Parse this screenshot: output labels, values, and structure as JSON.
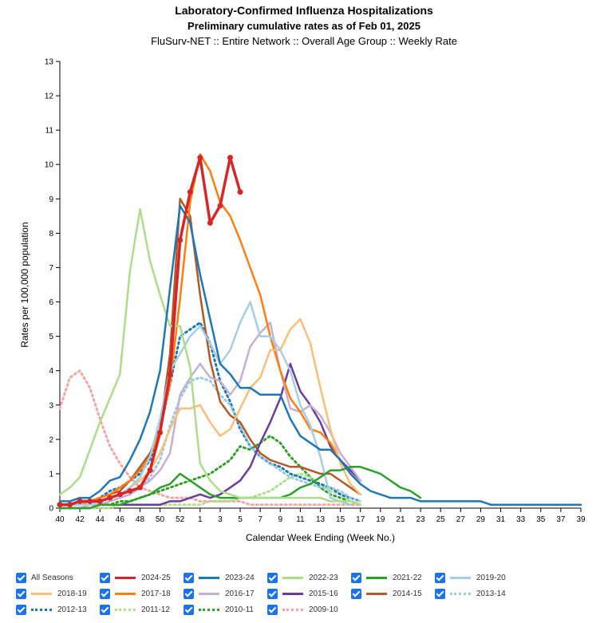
{
  "titles": {
    "line1": "Laboratory-Confirmed Influenza Hospitalizations",
    "line2": "Preliminary cumulative rates as of Feb 01, 2025",
    "line3": "FluSurv-NET :: Entire Network :: Overall Age Group :: Weekly Rate"
  },
  "chart_data": {
    "type": "line",
    "title": "Laboratory-Confirmed Influenza Hospitalizations",
    "subtitle": "Preliminary cumulative rates as of Feb 01, 2025",
    "xlabel": "Calendar Week Ending (Week No.)",
    "ylabel": "Rates per 100,000 population",
    "ylim": [
      0,
      13
    ],
    "yticks": [
      0,
      1,
      2,
      3,
      4,
      5,
      6,
      7,
      8,
      9,
      10,
      11,
      12,
      13
    ],
    "xticks": [
      "40",
      "42",
      "44",
      "46",
      "48",
      "50",
      "52",
      "1",
      "3",
      "5",
      "7",
      "9",
      "11",
      "13",
      "15",
      "17",
      "19",
      "21",
      "23",
      "25",
      "27",
      "29",
      "31",
      "33",
      "35",
      "37",
      "39"
    ],
    "x_weeks_note": "weeks 40..52 then 1..39",
    "series": [
      {
        "name": "2024-25",
        "color": "#d62728",
        "style": "solid",
        "markers": true,
        "values": [
          0.1,
          0.1,
          0.2,
          0.2,
          0.2,
          0.3,
          0.4,
          0.5,
          0.6,
          1.1,
          2.2,
          3.9,
          7.8,
          9.2,
          10.2,
          8.3,
          8.8,
          10.2,
          9.2
        ]
      },
      {
        "name": "2023-24",
        "color": "#1f77b4",
        "style": "solid",
        "values": [
          0.2,
          0.2,
          0.3,
          0.3,
          0.5,
          0.8,
          0.9,
          1.4,
          2.0,
          2.8,
          4.0,
          6.4,
          8.8,
          8.3,
          6.8,
          5.5,
          4.2,
          3.9,
          3.5,
          3.5,
          3.3,
          3.3,
          3.3,
          2.6,
          2.1,
          1.9,
          1.7,
          1.7,
          1.4,
          1.0,
          0.7,
          0.5,
          0.4,
          0.3,
          0.3,
          0.3,
          0.2,
          0.2,
          0.2,
          0.2,
          0.2,
          0.2,
          0.2,
          0.1,
          0.1,
          0.1,
          0.1,
          0.1,
          0.1,
          0.1,
          0.1,
          0.1,
          0.1
        ]
      },
      {
        "name": "2022-23",
        "color": "#aedc8c",
        "style": "solid",
        "values": [
          0.4,
          0.6,
          0.9,
          1.7,
          2.5,
          3.2,
          3.9,
          6.9,
          8.7,
          7.2,
          6.2,
          5.3,
          5.3,
          4.1,
          1.3,
          0.8,
          0.5,
          0.4,
          0.3,
          0.3,
          0.3,
          0.3,
          0.3,
          0.3,
          0.3,
          0.3,
          0.3,
          0.2,
          0.2,
          0.2,
          0.1
        ]
      },
      {
        "name": "2021-22",
        "color": "#2ca02c",
        "style": "solid",
        "values": [
          0.0,
          0.0,
          0.0,
          0.0,
          0.1,
          0.1,
          0.1,
          0.2,
          0.3,
          0.4,
          0.6,
          0.7,
          1.0,
          0.8,
          0.6,
          0.4,
          0.3,
          0.3,
          0.3,
          0.3,
          0.3,
          0.3,
          0.3,
          0.4,
          0.6,
          0.7,
          0.9,
          1.1,
          1.1,
          1.2,
          1.2,
          1.1,
          1.0,
          0.8,
          0.6,
          0.5,
          0.3
        ]
      },
      {
        "name": "2019-20",
        "color": "#a6cee3",
        "style": "solid",
        "values": [
          0.1,
          0.1,
          0.1,
          0.1,
          0.2,
          0.3,
          0.4,
          0.6,
          0.9,
          1.5,
          2.6,
          4.0,
          4.5,
          5.0,
          5.3,
          4.8,
          4.2,
          4.6,
          5.4,
          6.0,
          5.0,
          5.0,
          4.6,
          4.0,
          3.0,
          2.4,
          1.5,
          0.3,
          0.2,
          0.1
        ]
      },
      {
        "name": "2018-19",
        "color": "#f8bf78",
        "style": "solid",
        "values": [
          0.1,
          0.1,
          0.1,
          0.1,
          0.2,
          0.3,
          0.4,
          0.6,
          0.8,
          1.1,
          1.6,
          2.3,
          2.9,
          2.9,
          3.0,
          2.5,
          2.1,
          2.3,
          2.9,
          3.5,
          3.8,
          4.6,
          4.6,
          5.2,
          5.5,
          4.8,
          3.5,
          2.3,
          1.3,
          0.7,
          0.4
        ]
      },
      {
        "name": "2017-18",
        "color": "#ff7f0e",
        "style": "solid",
        "values": [
          0.1,
          0.1,
          0.1,
          0.2,
          0.3,
          0.4,
          0.6,
          0.8,
          1.1,
          1.5,
          2.3,
          3.6,
          6.1,
          8.9,
          10.3,
          9.8,
          8.9,
          8.5,
          7.8,
          7.0,
          6.2,
          5.0,
          4.0,
          3.2,
          2.8,
          2.3,
          2.2,
          1.9,
          1.4,
          1.0,
          0.7
        ]
      },
      {
        "name": "2016-17",
        "color": "#c5b0d5",
        "style": "solid",
        "values": [
          0.0,
          0.0,
          0.0,
          0.1,
          0.1,
          0.2,
          0.3,
          0.4,
          0.6,
          0.8,
          1.1,
          1.6,
          3.3,
          3.8,
          4.2,
          3.8,
          3.7,
          3.3,
          3.7,
          4.7,
          5.1,
          5.4,
          4.0,
          2.9,
          2.8,
          3.0,
          2.7,
          2.2,
          1.6,
          1.2,
          0.8
        ]
      },
      {
        "name": "2015-16",
        "color": "#6a3d9a",
        "style": "solid",
        "values": [
          0.0,
          0.0,
          0.0,
          0.0,
          0.1,
          0.1,
          0.1,
          0.1,
          0.1,
          0.1,
          0.1,
          0.2,
          0.2,
          0.3,
          0.4,
          0.3,
          0.4,
          0.6,
          0.8,
          1.2,
          1.9,
          2.5,
          3.2,
          4.2,
          3.4,
          3.0,
          2.5,
          1.8,
          1.4,
          1.1,
          0.8
        ]
      },
      {
        "name": "2014-15",
        "color": "#b15928",
        "style": "solid",
        "values": [
          0.1,
          0.1,
          0.1,
          0.2,
          0.3,
          0.4,
          0.5,
          0.8,
          1.2,
          1.6,
          2.3,
          4.5,
          9.0,
          8.5,
          6.2,
          4.3,
          3.1,
          2.7,
          2.5,
          2.0,
          1.6,
          1.4,
          1.3,
          1.2,
          1.2,
          1.1,
          1.0,
          1.0,
          0.8,
          0.6,
          0.4
        ]
      },
      {
        "name": "2013-14",
        "color": "#9ecae1",
        "style": "dotted",
        "values": [
          0.0,
          0.0,
          0.0,
          0.1,
          0.1,
          0.2,
          0.3,
          0.4,
          0.6,
          0.9,
          1.4,
          2.4,
          3.2,
          3.7,
          3.8,
          3.7,
          3.3,
          3.0,
          2.4,
          1.8,
          1.5,
          1.3,
          1.1,
          0.9,
          0.8,
          0.7,
          0.6,
          0.6,
          0.5,
          0.3,
          0.2
        ]
      },
      {
        "name": "2012-13",
        "color": "#1f77b4",
        "style": "dotted",
        "values": [
          0.1,
          0.1,
          0.1,
          0.2,
          0.3,
          0.5,
          0.6,
          0.8,
          1.0,
          1.4,
          2.3,
          3.6,
          5.0,
          5.2,
          5.4,
          4.8,
          3.7,
          3.1,
          2.3,
          1.8,
          1.5,
          1.3,
          1.2,
          1.0,
          0.9,
          0.8,
          0.7,
          0.6,
          0.4,
          0.3,
          0.2
        ]
      },
      {
        "name": "2011-12",
        "color": "#b2df8a",
        "style": "dotted",
        "values": [
          0.0,
          0.0,
          0.0,
          0.0,
          0.0,
          0.0,
          0.1,
          0.1,
          0.1,
          0.1,
          0.1,
          0.1,
          0.1,
          0.1,
          0.1,
          0.2,
          0.2,
          0.2,
          0.3,
          0.3,
          0.4,
          0.5,
          0.7,
          0.9,
          1.0,
          0.9,
          0.7,
          0.5,
          0.4,
          0.2,
          0.1
        ]
      },
      {
        "name": "2010-11",
        "color": "#33a02c",
        "style": "dotted",
        "values": [
          0.0,
          0.0,
          0.0,
          0.0,
          0.1,
          0.1,
          0.2,
          0.2,
          0.3,
          0.4,
          0.5,
          0.6,
          0.7,
          0.8,
          0.9,
          1.0,
          1.2,
          1.4,
          1.8,
          1.7,
          1.9,
          2.1,
          1.9,
          1.5,
          1.2,
          0.9,
          0.6,
          0.4,
          0.3,
          0.2,
          0.1
        ]
      },
      {
        "name": "2009-10",
        "color": "#f4a6a6",
        "style": "dotted",
        "values": [
          2.9,
          3.8,
          4.0,
          3.5,
          2.6,
          1.8,
          1.3,
          0.9,
          0.6,
          0.5,
          0.4,
          0.3,
          0.3,
          0.3,
          0.2,
          0.2,
          0.2,
          0.2,
          0.2,
          0.1,
          0.1,
          0.1,
          0.1,
          0.1,
          0.1,
          0.1,
          0.1,
          0.1,
          0.1,
          0.1,
          0.1
        ]
      }
    ]
  },
  "legend": {
    "all_seasons_label": "All Seasons",
    "items": [
      "2024-25",
      "2023-24",
      "2022-23",
      "2021-22",
      "2019-20",
      "2018-19",
      "2017-18",
      "2016-17",
      "2015-16",
      "2014-15",
      "2013-14",
      "2012-13",
      "2011-12",
      "2010-11",
      "2009-10"
    ]
  }
}
